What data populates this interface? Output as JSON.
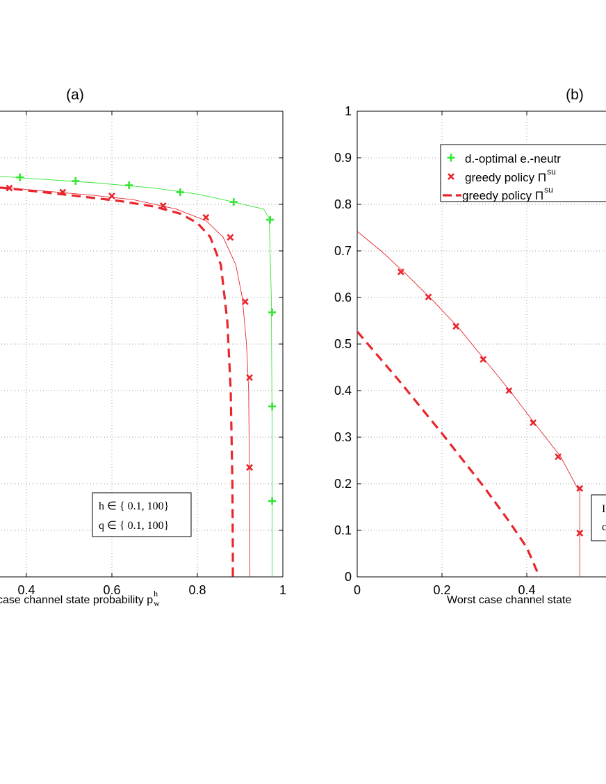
{
  "chart_data": [
    {
      "type": "line",
      "title": "(a)",
      "xlabel": "case channel state probability p",
      "xlabel_sup": "h",
      "xlabel_sub": "w",
      "x_ticks": [
        "0.4",
        "0.6",
        "0.8",
        "1"
      ],
      "xlim": [
        0.0,
        1.0
      ],
      "ylim": [
        0.0,
        1.0
      ],
      "grid": true,
      "annotation": [
        "h ∈ { 0.1, 100}",
        "q ∈ { 0.1, 100}"
      ],
      "series": [
        {
          "name": "d.-optimal e.-neutral",
          "style": "green-line-plus",
          "x": [
            0.2,
            0.4,
            0.55,
            0.7,
            0.8,
            0.88,
            0.93,
            0.955,
            0.968,
            0.973,
            0.975,
            0.975
          ],
          "y": [
            0.87,
            0.856,
            0.847,
            0.835,
            0.822,
            0.806,
            0.795,
            0.79,
            0.77,
            0.6,
            0.3,
            0.0
          ],
          "marker_x": [
            0.385,
            0.515,
            0.64,
            0.76,
            0.885,
            0.97,
            0.975,
            0.975,
            0.975
          ],
          "marker_y": [
            0.858,
            0.85,
            0.841,
            0.826,
            0.805,
            0.767,
            0.568,
            0.366,
            0.163
          ]
        },
        {
          "name": "greedy policy (line)",
          "style": "red-line-x",
          "x": [
            0.2,
            0.4,
            0.55,
            0.65,
            0.75,
            0.82,
            0.86,
            0.89,
            0.905,
            0.915,
            0.92,
            0.922,
            0.923
          ],
          "y": [
            0.85,
            0.832,
            0.82,
            0.81,
            0.79,
            0.765,
            0.73,
            0.67,
            0.6,
            0.5,
            0.4,
            0.2,
            0.0
          ],
          "marker_x": [
            0.36,
            0.485,
            0.6,
            0.72,
            0.82,
            0.877,
            0.912,
            0.922,
            0.922
          ],
          "marker_y": [
            0.835,
            0.826,
            0.818,
            0.797,
            0.772,
            0.729,
            0.591,
            0.428,
            0.235
          ]
        },
        {
          "name": "greedy policy (dashed)",
          "style": "red-dashed",
          "x": [
            0.2,
            0.35,
            0.5,
            0.62,
            0.7,
            0.76,
            0.8,
            0.83,
            0.855,
            0.87,
            0.878,
            0.882,
            0.883,
            0.883
          ],
          "y": [
            0.845,
            0.835,
            0.82,
            0.807,
            0.795,
            0.78,
            0.76,
            0.73,
            0.67,
            0.55,
            0.4,
            0.2,
            0.05,
            0.0
          ]
        }
      ]
    },
    {
      "type": "line",
      "title": "(b)",
      "xlabel": "Worst case channel state",
      "x_ticks": [
        "0",
        "0.2",
        "0.4",
        "0"
      ],
      "y_ticks": [
        "0",
        "0.1",
        "0.2",
        "0.3",
        "0.4",
        "0.5",
        "0.6",
        "0.7",
        "0.8",
        "0.9",
        "1"
      ],
      "xlim": [
        0.0,
        0.6
      ],
      "ylim": [
        0.0,
        1.0
      ],
      "grid": true,
      "legend": [
        {
          "label": "d.-optimal e.-neutr",
          "sup": "",
          "style": "green-plus"
        },
        {
          "label": "greedy policy Π",
          "sup": "su",
          "style": "red-x"
        },
        {
          "label": "greedy policy Π",
          "sup": "su",
          "style": "red-dashed"
        }
      ],
      "annotation": [
        "I",
        "c"
      ],
      "series": [
        {
          "name": "greedy policy (line)",
          "style": "red-line-x",
          "x": [
            0.0,
            0.06,
            0.12,
            0.18,
            0.24,
            0.3,
            0.36,
            0.42,
            0.48,
            0.52,
            0.525,
            0.525
          ],
          "y": [
            0.742,
            0.697,
            0.646,
            0.592,
            0.534,
            0.467,
            0.4,
            0.328,
            0.258,
            0.19,
            0.19,
            0.0
          ],
          "marker_x": [
            0.103,
            0.168,
            0.233,
            0.297,
            0.358,
            0.415,
            0.474,
            0.525,
            0.525
          ],
          "marker_y": [
            0.655,
            0.601,
            0.538,
            0.467,
            0.4,
            0.331,
            0.258,
            0.19,
            0.094
          ]
        },
        {
          "name": "greedy policy (dashed)",
          "style": "red-dashed",
          "x": [
            0.0,
            0.1,
            0.2,
            0.3,
            0.36,
            0.4,
            0.43
          ],
          "y": [
            0.527,
            0.42,
            0.308,
            0.192,
            0.117,
            0.063,
            0.0
          ]
        }
      ]
    }
  ]
}
